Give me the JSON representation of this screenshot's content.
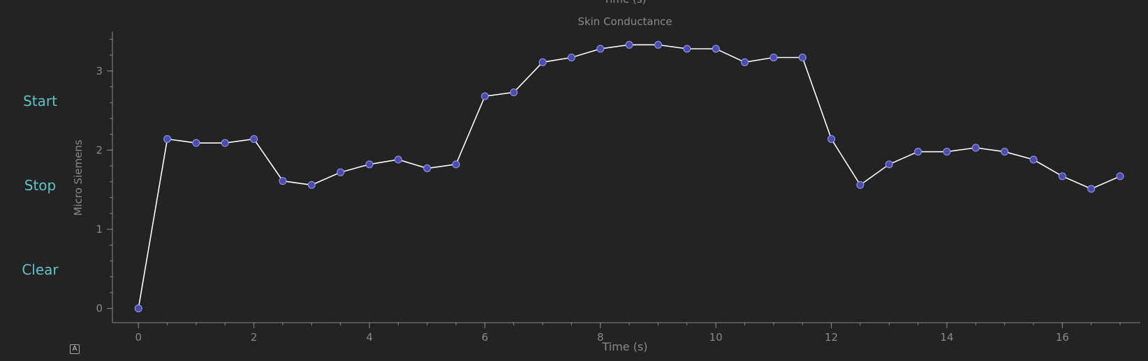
{
  "controls": {
    "start_label": "Start",
    "stop_label": "Stop",
    "clear_label": "Clear",
    "auto_range_label": "A"
  },
  "colors": {
    "background": "#232323",
    "button_text": "#5fc3c8",
    "axis": "#8a8a8a",
    "line": "#ffffff",
    "marker_fill": "#4a4cb0",
    "marker_edge": "#9a9cf0"
  },
  "chart_data": {
    "type": "line",
    "title": "Skin Conductance",
    "top_label_fragment": "Time (s)",
    "xlabel": "Time (s)",
    "ylabel": "Micro Siemens",
    "xlim": [
      -0.45,
      17.35
    ],
    "ylim": [
      -0.18,
      3.5
    ],
    "xticks": [
      0,
      2,
      4,
      6,
      8,
      10,
      12,
      14,
      16
    ],
    "yticks": [
      0,
      1,
      2,
      3
    ],
    "grid": false,
    "series": [
      {
        "x": [
          0,
          0.5,
          1,
          1.5,
          2,
          2.5,
          3,
          3.5,
          4,
          4.5,
          5,
          5.5,
          6,
          6.5,
          7,
          7.5,
          8,
          8.5,
          9,
          9.5,
          10,
          10.5,
          11,
          11.5,
          12,
          12.5,
          13,
          13.5,
          14,
          14.5,
          15,
          15.5,
          16,
          16.5,
          17
        ],
        "values": [
          0,
          2.14,
          2.09,
          2.09,
          2.14,
          1.61,
          1.56,
          1.72,
          1.82,
          1.88,
          1.77,
          1.82,
          2.68,
          2.73,
          3.11,
          3.17,
          3.28,
          3.33,
          3.33,
          3.28,
          3.28,
          3.11,
          3.17,
          3.17,
          2.14,
          1.56,
          1.82,
          1.98,
          1.98,
          2.03,
          1.98,
          1.88,
          1.67,
          1.51,
          1.67
        ]
      }
    ]
  }
}
